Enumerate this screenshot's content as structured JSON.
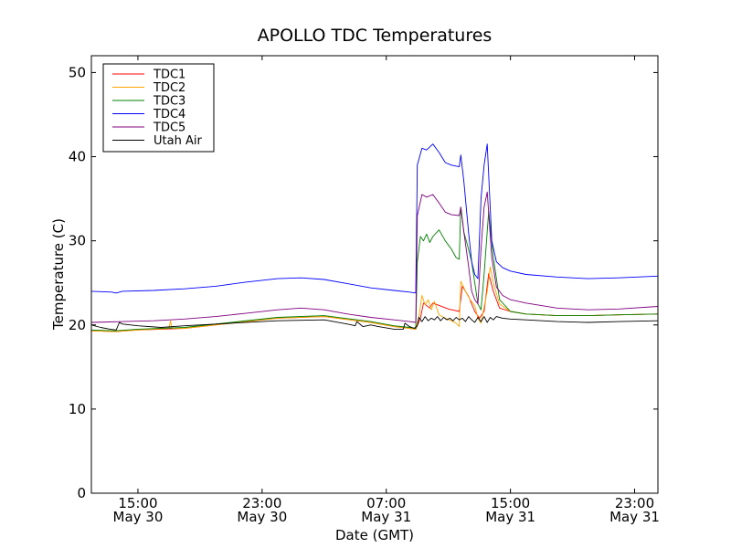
{
  "chart_data": {
    "type": "line",
    "title": "APOLLO TDC Temperatures",
    "xlabel": "Date (GMT)",
    "ylabel": "Temperature (C)",
    "xlim": [
      12.0,
      48.5
    ],
    "ylim": [
      0,
      52
    ],
    "grid": false,
    "legend_position": "top-left",
    "yticks": [
      0,
      10,
      20,
      30,
      40,
      50
    ],
    "xticks": [
      {
        "value": 15,
        "time": "15:00",
        "date": "May 30"
      },
      {
        "value": 23,
        "time": "23:00",
        "date": "May 30"
      },
      {
        "value": 31,
        "time": "07:00",
        "date": "May 31"
      },
      {
        "value": 39,
        "time": "15:00",
        "date": "May 31"
      },
      {
        "value": 47,
        "time": "23:00",
        "date": "May 31"
      }
    ],
    "series": [
      {
        "name": "TDC1",
        "color": "#ff0000",
        "x": [
          12.0,
          13.5,
          15,
          18,
          21,
          24,
          27,
          30,
          31.5,
          32.5,
          32.9,
          33.2,
          33.4,
          33.8,
          34,
          35,
          35.7,
          35.9,
          36.3,
          36.7,
          37,
          37.3,
          37.6,
          37.9,
          38.3,
          39,
          40,
          42,
          44,
          46,
          48.5
        ],
        "y": [
          19.3,
          19.2,
          19.4,
          19.6,
          20.2,
          20.8,
          21.0,
          20.3,
          19.8,
          19.6,
          19.5,
          20.8,
          22.6,
          22.0,
          22.6,
          21.9,
          21.6,
          24.6,
          23.4,
          21.6,
          20.8,
          21.6,
          26.1,
          24.0,
          22.0,
          21.6,
          21.3,
          21.1,
          21.1,
          21.2,
          21.3
        ]
      },
      {
        "name": "TDC2",
        "color": "#ffa500",
        "x": [
          12.0,
          13.5,
          15,
          17,
          17.1,
          17.2,
          18,
          21,
          24,
          27,
          30,
          31.5,
          32.5,
          32.9,
          33.1,
          33.3,
          33.5,
          33.7,
          33.9,
          34.1,
          34.4,
          34.8,
          35.2,
          35.5,
          35.7,
          35.8,
          36.1,
          36.4,
          36.7,
          36.9,
          37.1,
          37.3,
          37.5,
          37.7,
          37.9,
          38.3,
          39,
          40,
          42,
          44,
          46,
          48.5
        ],
        "y": [
          19.3,
          19.2,
          19.4,
          19.6,
          20.5,
          19.6,
          19.6,
          20.2,
          20.8,
          21.0,
          20.3,
          19.8,
          19.6,
          19.5,
          21.0,
          23.5,
          22.4,
          23.0,
          21.8,
          22.8,
          21.2,
          20.8,
          20.5,
          20.2,
          19.8,
          25.2,
          24.0,
          23.0,
          22.3,
          20.8,
          20.2,
          22.1,
          24.0,
          26.9,
          25.0,
          22.5,
          21.6,
          21.3,
          21.1,
          21.1,
          21.2,
          21.3
        ]
      },
      {
        "name": "TDC3",
        "color": "#008000",
        "x": [
          12.0,
          13.5,
          15,
          18,
          21,
          24,
          27,
          30,
          31.5,
          32.5,
          32.9,
          33.0,
          33.2,
          33.4,
          33.6,
          33.8,
          34.0,
          34.4,
          34.8,
          35.2,
          35.5,
          35.7,
          35.8,
          36.0,
          36.3,
          36.5,
          36.7,
          36.9,
          37.1,
          37.3,
          37.6,
          37.9,
          38.3,
          39,
          40,
          42,
          44,
          46,
          48.5
        ],
        "y": [
          19.4,
          19.3,
          19.5,
          19.7,
          20.3,
          20.9,
          21.1,
          20.4,
          19.9,
          19.7,
          19.6,
          27.5,
          30.5,
          30.0,
          30.8,
          29.8,
          30.5,
          31.3,
          30.0,
          29.0,
          28.0,
          27.8,
          34.0,
          31.0,
          29.0,
          27.5,
          25.0,
          22.5,
          21.8,
          26.0,
          33.5,
          28.0,
          23.0,
          21.6,
          21.3,
          21.1,
          21.1,
          21.2,
          21.3
        ]
      },
      {
        "name": "TDC4",
        "color": "#0000ff",
        "x": [
          12.0,
          13.3,
          13.6,
          14,
          16,
          18,
          20,
          22,
          24,
          25.5,
          27,
          28.5,
          30,
          31.5,
          32.5,
          32.9,
          33.0,
          33.3,
          33.6,
          34.0,
          34.4,
          34.8,
          35.2,
          35.7,
          35.8,
          36.0,
          36.3,
          36.5,
          36.7,
          36.9,
          37.1,
          37.3,
          37.5,
          37.8,
          38.1,
          38.5,
          39,
          40,
          42,
          44,
          46,
          48.5
        ],
        "y": [
          24.0,
          23.9,
          23.8,
          24.0,
          24.1,
          24.3,
          24.6,
          25.1,
          25.5,
          25.6,
          25.4,
          24.9,
          24.4,
          24.1,
          23.9,
          23.8,
          39.0,
          41.0,
          40.8,
          41.5,
          40.5,
          39.3,
          39.0,
          38.8,
          40.2,
          37.0,
          31.0,
          27.5,
          26.0,
          25.5,
          35.0,
          39.0,
          41.5,
          30.0,
          27.5,
          26.8,
          26.4,
          26.0,
          25.7,
          25.5,
          25.6,
          25.8
        ]
      },
      {
        "name": "TDC5",
        "color": "#800080",
        "x": [
          12.0,
          14,
          16,
          18,
          20,
          22,
          24,
          25.5,
          27,
          28.5,
          30,
          31.5,
          32.5,
          32.9,
          33.0,
          33.3,
          33.6,
          34.0,
          34.4,
          34.8,
          35.2,
          35.7,
          35.8,
          36.0,
          36.3,
          36.5,
          36.7,
          36.9,
          37.1,
          37.3,
          37.5,
          37.8,
          38.1,
          38.5,
          39,
          40,
          42,
          44,
          46,
          48.5
        ],
        "y": [
          20.3,
          20.4,
          20.5,
          20.7,
          21.0,
          21.4,
          21.8,
          22.0,
          21.8,
          21.3,
          20.9,
          20.6,
          20.4,
          20.3,
          33.0,
          35.5,
          35.2,
          35.5,
          34.5,
          33.4,
          33.1,
          33.0,
          34.0,
          31.0,
          27.0,
          24.0,
          23.0,
          22.5,
          29.0,
          34.0,
          35.8,
          28.0,
          24.5,
          23.5,
          23.0,
          22.6,
          22.0,
          21.8,
          21.9,
          22.2
        ]
      },
      {
        "name": "Utah Air",
        "color": "#000000",
        "x": [
          12.0,
          12.6,
          13.2,
          13.6,
          13.8,
          14,
          15,
          16.5,
          18,
          21,
          24,
          27,
          28.5,
          29.0,
          29.1,
          29.5,
          30,
          30.5,
          31.5,
          32.1,
          32.2,
          32.5,
          32.8,
          33.0,
          33.1,
          33.3,
          33.5,
          33.7,
          33.9,
          34.1,
          34.3,
          34.5,
          34.7,
          34.9,
          35.1,
          35.3,
          35.5,
          35.7,
          35.9,
          36.1,
          36.3,
          36.5,
          36.7,
          36.9,
          37.1,
          37.3,
          37.5,
          37.7,
          37.9,
          38.1,
          38.5,
          39,
          40,
          42,
          44,
          46,
          48.5
        ],
        "y": [
          20.0,
          19.7,
          19.5,
          19.4,
          20.3,
          20.1,
          19.9,
          19.7,
          19.9,
          20.2,
          20.5,
          20.6,
          20.1,
          19.9,
          20.4,
          19.8,
          20.0,
          19.8,
          19.5,
          19.5,
          20.2,
          19.8,
          19.6,
          19.9,
          20.9,
          20.4,
          21.0,
          20.5,
          20.8,
          20.6,
          21.0,
          20.5,
          20.9,
          20.6,
          20.8,
          20.5,
          20.9,
          20.6,
          20.8,
          20.4,
          21.0,
          20.6,
          20.3,
          20.9,
          20.4,
          21.0,
          20.3,
          20.9,
          20.6,
          21.0,
          20.8,
          20.7,
          20.6,
          20.4,
          20.3,
          20.4,
          20.5
        ]
      }
    ]
  }
}
